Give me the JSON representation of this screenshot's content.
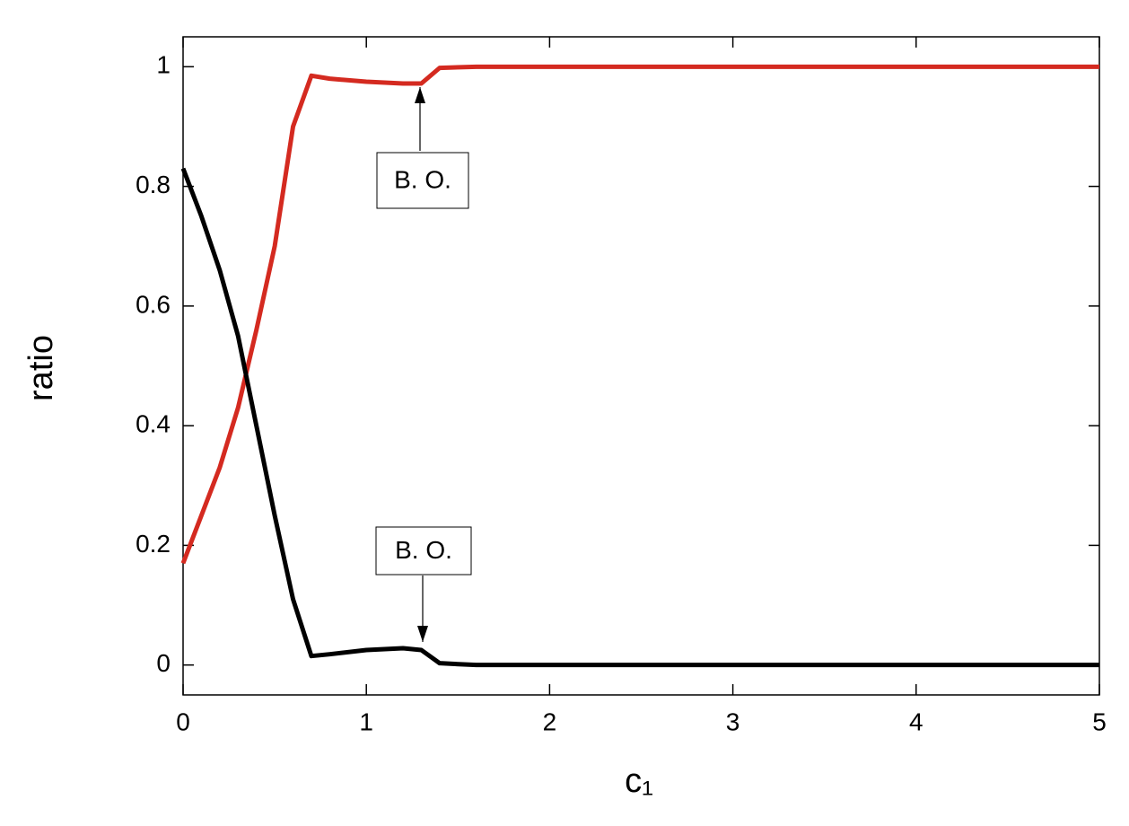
{
  "chart_data": {
    "type": "line",
    "x_label": "c₁",
    "y_label": "ratio",
    "x": [
      0,
      0.1,
      0.2,
      0.3,
      0.4,
      0.5,
      0.6,
      0.7,
      0.8,
      1.0,
      1.2,
      1.3,
      1.4,
      1.6,
      5
    ],
    "series": [
      {
        "color": "#d42a20",
        "values": [
          0.17,
          0.25,
          0.33,
          0.43,
          0.56,
          0.7,
          0.9,
          0.985,
          0.98,
          0.975,
          0.972,
          0.972,
          0.998,
          1.0,
          1.0
        ]
      },
      {
        "color": "#000000",
        "values": [
          0.83,
          0.75,
          0.66,
          0.55,
          0.4,
          0.25,
          0.11,
          0.015,
          0.018,
          0.025,
          0.028,
          0.025,
          0.003,
          0,
          0
        ]
      }
    ],
    "xlim": [
      0,
      5
    ],
    "xticks": [
      0,
      1,
      2,
      3,
      4,
      5
    ],
    "ylim": [
      -0.05,
      1.05
    ],
    "yticks": [
      0,
      0.2,
      0.4,
      0.6,
      0.8,
      1
    ],
    "grid": false,
    "annotations": [
      {
        "text": "B. O."
      },
      {
        "text": "B. O."
      }
    ]
  }
}
